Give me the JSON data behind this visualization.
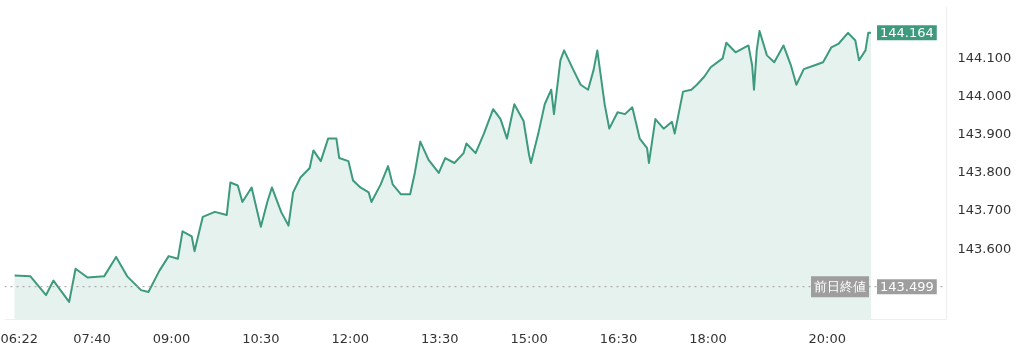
{
  "chart_data": {
    "type": "area",
    "x": [
      6.37,
      6.635,
      6.897,
      7.021,
      7.284,
      7.392,
      7.593,
      7.871,
      8.072,
      8.258,
      8.49,
      8.614,
      8.799,
      8.954,
      9.108,
      9.186,
      9.34,
      9.387,
      9.526,
      9.727,
      9.928,
      9.989,
      10.113,
      10.19,
      10.345,
      10.5,
      10.608,
      10.685,
      10.84,
      10.963,
      11.041,
      11.164,
      11.319,
      11.381,
      11.505,
      11.628,
      11.767,
      11.814,
      11.968,
      12.046,
      12.169,
      12.308,
      12.355,
      12.51,
      12.633,
      12.711,
      12.85,
      13.004,
      13.082,
      13.174,
      13.313,
      13.484,
      13.592,
      13.746,
      13.901,
      13.947,
      14.102,
      14.241,
      14.396,
      14.52,
      14.628,
      14.751,
      14.906,
      14.999,
      15.03,
      15.153,
      15.261,
      15.37,
      15.416,
      15.524,
      15.586,
      15.741,
      15.864,
      15.988,
      16.081,
      16.143,
      16.266,
      16.344,
      16.483,
      16.607,
      16.73,
      16.854,
      16.978,
      17.009,
      17.117,
      17.256,
      17.395,
      17.441,
      17.581,
      17.72,
      17.813,
      17.936,
      18.045,
      18.245,
      18.307,
      18.462,
      18.678,
      18.74,
      18.771,
      18.817,
      18.864,
      18.988,
      19.111,
      19.266,
      19.39,
      19.482,
      19.606,
      19.791,
      19.93,
      20.069,
      20.193,
      20.348,
      20.471,
      20.533,
      20.641,
      20.688,
      20.734
    ],
    "series": [
      {
        "color": "#3d9a7e",
        "values": [
          143.528,
          143.526,
          143.477,
          143.515,
          143.459,
          143.546,
          143.523,
          143.526,
          143.577,
          143.526,
          143.49,
          143.485,
          143.541,
          143.579,
          143.572,
          143.644,
          143.631,
          143.592,
          143.682,
          143.695,
          143.687,
          143.772,
          143.764,
          143.721,
          143.759,
          143.656,
          143.721,
          143.759,
          143.695,
          143.659,
          143.746,
          143.785,
          143.81,
          143.856,
          143.828,
          143.887,
          143.887,
          143.836,
          143.828,
          143.777,
          143.759,
          143.746,
          143.721,
          143.767,
          143.815,
          143.767,
          143.741,
          143.741,
          143.797,
          143.879,
          143.831,
          143.797,
          143.836,
          143.823,
          143.849,
          143.874,
          143.849,
          143.9,
          143.964,
          143.938,
          143.887,
          143.977,
          143.933,
          143.844,
          143.823,
          143.9,
          143.977,
          144.015,
          143.951,
          144.092,
          144.118,
          144.067,
          144.028,
          144.015,
          144.067,
          144.118,
          143.977,
          143.913,
          143.956,
          143.951,
          143.969,
          143.887,
          143.862,
          143.823,
          143.938,
          143.913,
          143.931,
          143.9,
          144.01,
          144.015,
          144.028,
          144.049,
          144.074,
          144.097,
          144.138,
          144.113,
          144.131,
          144.079,
          144.015,
          144.118,
          144.169,
          144.105,
          144.087,
          144.131,
          144.079,
          144.028,
          144.069,
          144.079,
          144.087,
          144.126,
          144.136,
          144.164,
          144.144,
          144.092,
          144.118,
          144.164,
          144.164
        ]
      }
    ],
    "xlim": [
      6.2,
      22.0
    ],
    "xticks": [
      {
        "value": 6.367,
        "label": "06:22"
      },
      {
        "value": 7.667,
        "label": "07:40"
      },
      {
        "value": 9,
        "label": "09:00"
      },
      {
        "value": 10.5,
        "label": "10:30"
      },
      {
        "value": 12,
        "label": "12:00"
      },
      {
        "value": 13.5,
        "label": "13:30"
      },
      {
        "value": 15,
        "label": "15:00"
      },
      {
        "value": 16.5,
        "label": "16:30"
      },
      {
        "value": 18,
        "label": "18:00"
      },
      {
        "value": 20,
        "label": "20:00"
      }
    ],
    "ylim": [
      143.413,
      144.233
    ],
    "yticks": [
      {
        "value": 143.6,
        "label": "143.600"
      },
      {
        "value": 143.7,
        "label": "143.700"
      },
      {
        "value": 143.8,
        "label": "143.800"
      },
      {
        "value": 143.9,
        "label": "143.900"
      },
      {
        "value": 144.0,
        "label": "144.000"
      },
      {
        "value": 144.1,
        "label": "144.100"
      }
    ],
    "ref_lines": [
      {
        "axis": "y",
        "value": 143.499,
        "label": "前日終値",
        "color": "#9e9e9e",
        "line_style": "dotted"
      }
    ],
    "annotations": [
      {
        "text": "144.164",
        "x": 20.734,
        "y": 144.164
      },
      {
        "text": "143.499",
        "x": 20.734,
        "y": 143.499
      }
    ],
    "grid": false,
    "marker": "none",
    "line_style": "solid"
  }
}
